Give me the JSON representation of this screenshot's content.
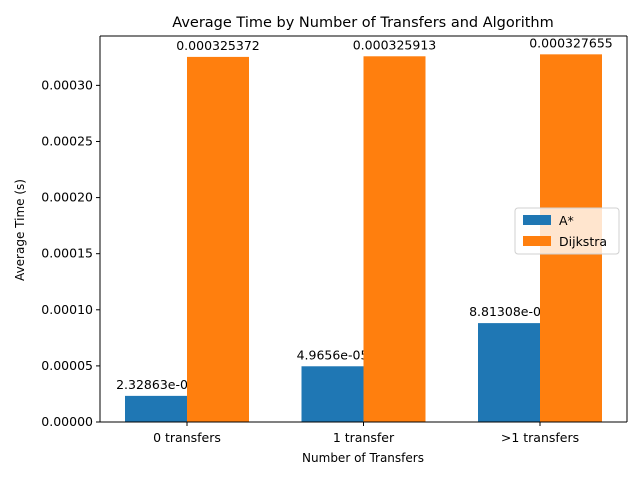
{
  "chart_data": {
    "type": "bar",
    "title": "Average Time by Number of Transfers and Algorithm",
    "xlabel": "Number of Transfers",
    "ylabel": "Average Time (s)",
    "categories": [
      "0 transfers",
      "1 transfer",
      ">1 transfers"
    ],
    "series": [
      {
        "name": "A*",
        "color": "#1f77b4",
        "values": [
          2.32863e-05,
          4.9656e-05,
          8.81308e-05
        ],
        "labels": [
          "2.32863e-05",
          "4.9656e-05",
          "8.81308e-05"
        ]
      },
      {
        "name": "Dijkstra",
        "color": "#ff7f0e",
        "values": [
          0.000325372,
          0.000325913,
          0.000327655
        ],
        "labels": [
          "0.000325372",
          "0.000325913",
          "0.000327655"
        ]
      }
    ],
    "ylim": [
      0,
      0.000344
    ],
    "yticks": [
      0,
      5e-05,
      0.0001,
      0.00015,
      0.0002,
      0.00025,
      0.0003
    ],
    "ytick_labels": [
      "0.00000",
      "0.00005",
      "0.00010",
      "0.00015",
      "0.00020",
      "0.00025",
      "0.00030"
    ],
    "grid": false,
    "legend_position": "center-right"
  }
}
